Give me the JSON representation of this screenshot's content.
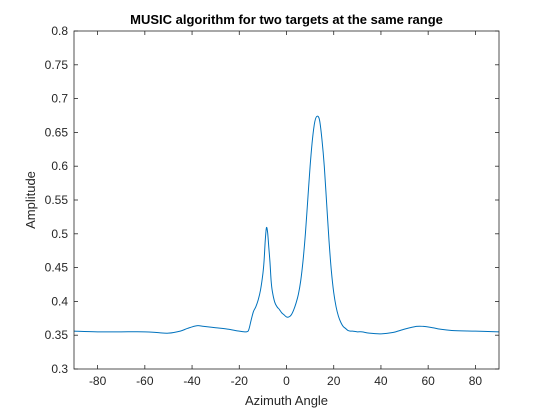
{
  "chart_data": {
    "type": "line",
    "title": "MUSIC algorithm for two targets at the same range",
    "xlabel": "Azimuth Angle",
    "ylabel": "Amplitude",
    "xlim": [
      -90,
      90
    ],
    "ylim": [
      0.3,
      0.8
    ],
    "xticks": [
      "-80",
      "-60",
      "-40",
      "-20",
      "0",
      "20",
      "40",
      "60",
      "80"
    ],
    "yticks": [
      "0.3",
      "0.35",
      "0.4",
      "0.45",
      "0.5",
      "0.55",
      "0.6",
      "0.65",
      "0.7",
      "0.75",
      "0.8"
    ],
    "grid": false,
    "series": [
      {
        "color": "#0072BD",
        "x": [
          -90,
          -80,
          -70,
          -60,
          -55,
          -50,
          -45,
          -42,
          -38,
          -35,
          -30,
          -25,
          -20,
          -17,
          -16,
          -15,
          -14,
          -13,
          -12,
          -11,
          -10,
          -9.5,
          -9,
          -8.5,
          -8,
          -7.5,
          -7,
          -6.5,
          -6,
          -5,
          -4,
          -3,
          -2,
          -1,
          0,
          1,
          2,
          3,
          4,
          5,
          6,
          7,
          8,
          9,
          10,
          11,
          12,
          13,
          14,
          15,
          16,
          17,
          18,
          19,
          20,
          21,
          22,
          23,
          24,
          25,
          26,
          27,
          28,
          30,
          32,
          35,
          40,
          45,
          50,
          55,
          58,
          62,
          65,
          70,
          80,
          90
        ],
        "y": [
          0.356,
          0.355,
          0.355,
          0.355,
          0.354,
          0.353,
          0.356,
          0.36,
          0.364,
          0.363,
          0.361,
          0.359,
          0.356,
          0.355,
          0.358,
          0.372,
          0.385,
          0.392,
          0.402,
          0.417,
          0.441,
          0.46,
          0.49,
          0.509,
          0.502,
          0.48,
          0.458,
          0.43,
          0.415,
          0.399,
          0.392,
          0.388,
          0.383,
          0.38,
          0.377,
          0.377,
          0.38,
          0.387,
          0.397,
          0.41,
          0.43,
          0.46,
          0.5,
          0.55,
          0.6,
          0.64,
          0.666,
          0.674,
          0.668,
          0.64,
          0.6,
          0.545,
          0.49,
          0.445,
          0.413,
          0.392,
          0.378,
          0.369,
          0.363,
          0.36,
          0.357,
          0.356,
          0.356,
          0.355,
          0.355,
          0.353,
          0.352,
          0.354,
          0.359,
          0.363,
          0.363,
          0.361,
          0.359,
          0.357,
          0.356,
          0.355
        ]
      }
    ]
  }
}
